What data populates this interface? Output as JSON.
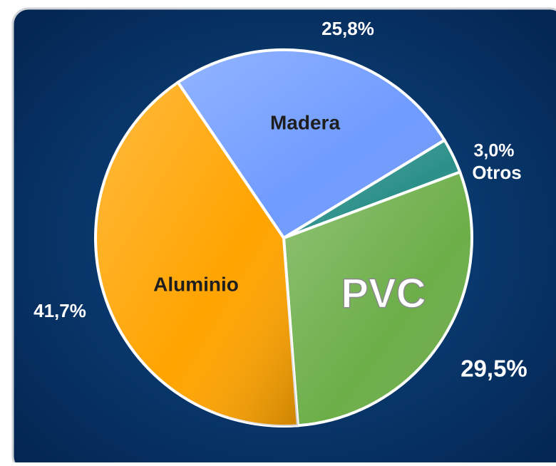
{
  "chart_data": {
    "type": "pie",
    "categories": [
      "Madera",
      "Otros",
      "PVC",
      "Aluminio"
    ],
    "values": [
      25.8,
      3.0,
      29.5,
      41.7
    ],
    "value_labels": [
      "25,8%",
      "3,0%",
      "29,5%",
      "41,7%"
    ],
    "colors": [
      "#6f9bff",
      "#2b9089",
      "#6cae48",
      "#ffa400"
    ]
  }
}
